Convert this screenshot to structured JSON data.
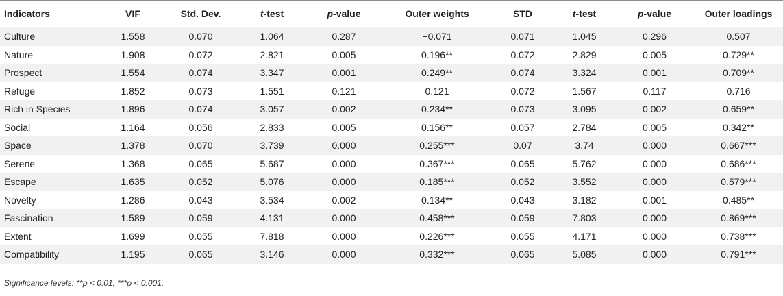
{
  "table": {
    "headers": [
      {
        "pre": "",
        "it": "",
        "post": "Indicators"
      },
      {
        "pre": "",
        "it": "",
        "post": "VIF"
      },
      {
        "pre": "",
        "it": "",
        "post": "Std. Dev."
      },
      {
        "pre": "",
        "it": "t",
        "post": "-test"
      },
      {
        "pre": "",
        "it": "p",
        "post": "-value"
      },
      {
        "pre": "",
        "it": "",
        "post": "Outer weights"
      },
      {
        "pre": "",
        "it": "",
        "post": "STD"
      },
      {
        "pre": "",
        "it": "t",
        "post": "-test"
      },
      {
        "pre": "",
        "it": "p",
        "post": "-value"
      },
      {
        "pre": "",
        "it": "",
        "post": "Outer loadings"
      }
    ],
    "rows": [
      [
        "Culture",
        "1.558",
        "0.070",
        "1.064",
        "0.287",
        "−0.071",
        "0.071",
        "1.045",
        "0.296",
        "0.507"
      ],
      [
        "Nature",
        "1.908",
        "0.072",
        "2.821",
        "0.005",
        "0.196**",
        "0.072",
        "2.829",
        "0.005",
        "0.729**"
      ],
      [
        "Prospect",
        "1.554",
        "0.074",
        "3.347",
        "0.001",
        "0.249**",
        "0.074",
        "3.324",
        "0.001",
        "0.709**"
      ],
      [
        "Refuge",
        "1.852",
        "0.073",
        "1.551",
        "0.121",
        "0.121",
        "0.072",
        "1.567",
        "0.117",
        "0.716"
      ],
      [
        "Rich in Species",
        "1.896",
        "0.074",
        "3.057",
        "0.002",
        "0.234**",
        "0.073",
        "3.095",
        "0.002",
        "0.659**"
      ],
      [
        "Social",
        "1.164",
        "0.056",
        "2.833",
        "0.005",
        "0.156**",
        "0.057",
        "2.784",
        "0.005",
        "0.342**"
      ],
      [
        "Space",
        "1.378",
        "0.070",
        "3.739",
        "0.000",
        "0.255***",
        "0.07",
        "3.74",
        "0.000",
        "0.667***"
      ],
      [
        "Serene",
        "1.368",
        "0.065",
        "5.687",
        "0.000",
        "0.367***",
        "0.065",
        "5.762",
        "0.000",
        "0.686***"
      ],
      [
        "Escape",
        "1.635",
        "0.052",
        "5.076",
        "0.000",
        "0.185***",
        "0.052",
        "3.552",
        "0.000",
        "0.579***"
      ],
      [
        "Novelty",
        "1.286",
        "0.043",
        "3.534",
        "0.002",
        "0.134**",
        "0.043",
        "3.182",
        "0.001",
        "0.485**"
      ],
      [
        "Fascination",
        "1.589",
        "0.059",
        "4.131",
        "0.000",
        "0.458***",
        "0.059",
        "7.803",
        "0.000",
        "0.869***"
      ],
      [
        "Extent",
        "1.699",
        "0.055",
        "7.818",
        "0.000",
        "0.226***",
        "0.055",
        "4.171",
        "0.000",
        "0.738***"
      ],
      [
        "Compatibility",
        "1.195",
        "0.065",
        "3.146",
        "0.000",
        "0.332***",
        "0.065",
        "5.085",
        "0.000",
        "0.791***"
      ]
    ]
  },
  "footnote": "Significance levels: **ρ < 0.01, ***ρ < 0.001."
}
